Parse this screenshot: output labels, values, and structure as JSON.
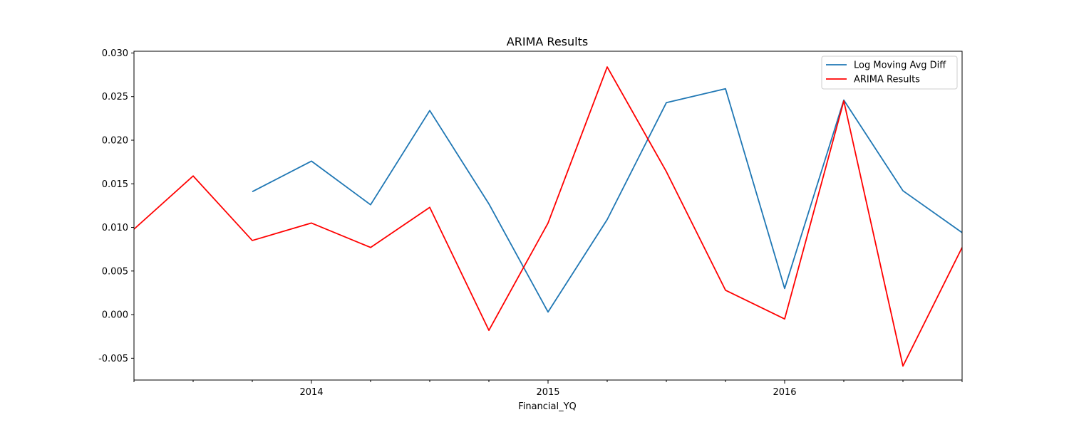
{
  "chart_data": {
    "type": "line",
    "title": "ARIMA Results",
    "xlabel": "Financial_YQ",
    "ylabel": "",
    "x": [
      "2013Q2",
      "2013Q3",
      "2013Q4",
      "2014Q1",
      "2014Q2",
      "2014Q3",
      "2014Q4",
      "2015Q1",
      "2015Q2",
      "2015Q3",
      "2015Q4",
      "2016Q1",
      "2016Q2",
      "2016Q3",
      "2016Q4"
    ],
    "x_tick_labels": [
      {
        "x": "2014Q1",
        "label": "2014"
      },
      {
        "x": "2015Q1",
        "label": "2015"
      },
      {
        "x": "2016Q1",
        "label": "2016"
      }
    ],
    "ylim": [
      -0.0075,
      0.0302
    ],
    "y_ticks": [
      "-0.005",
      "0.000",
      "0.005",
      "0.010",
      "0.015",
      "0.020",
      "0.025",
      "0.030"
    ],
    "grid": false,
    "legend": "top-right",
    "series": [
      {
        "name": "Log Moving Avg Diff",
        "color": "#1f77b4",
        "values": [
          null,
          null,
          0.0141,
          0.0176,
          0.0126,
          0.0234,
          0.0127,
          0.0003,
          0.0109,
          0.0243,
          0.0259,
          0.003,
          0.0246,
          0.0142,
          0.0094
        ]
      },
      {
        "name": "ARIMA Results",
        "color": "#ff0000",
        "values": [
          0.0098,
          0.0159,
          0.0085,
          0.0105,
          0.0077,
          0.0123,
          -0.0018,
          0.0105,
          0.0284,
          0.0164,
          0.0028,
          -0.0005,
          0.0245,
          -0.0059,
          0.0077
        ]
      }
    ]
  }
}
